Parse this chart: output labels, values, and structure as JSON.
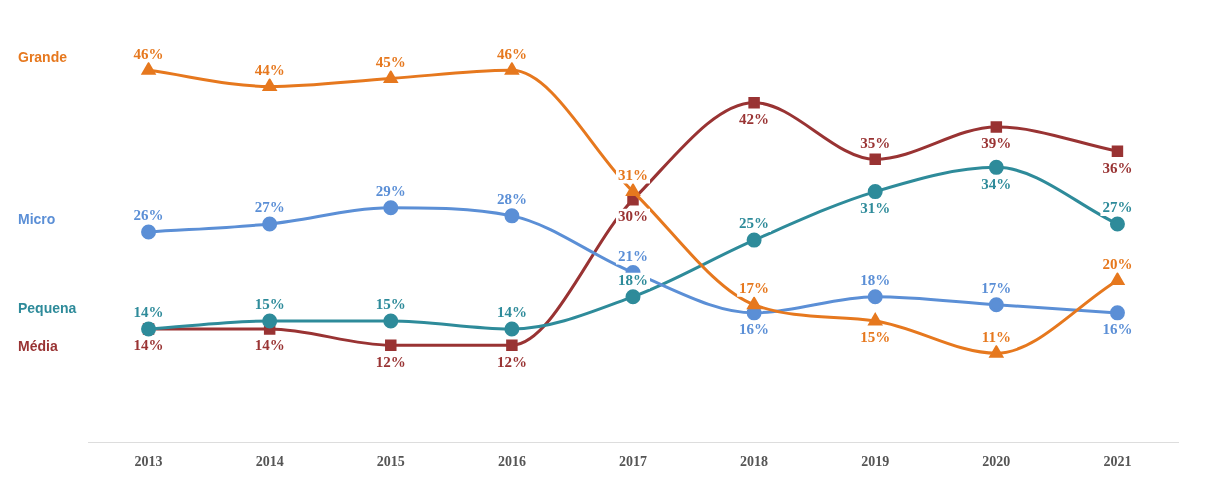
{
  "chart_data": {
    "type": "line",
    "categories": [
      "2013",
      "2014",
      "2015",
      "2016",
      "2017",
      "2018",
      "2019",
      "2020",
      "2021"
    ],
    "series": [
      {
        "name": "Grande",
        "color": "#e6781e",
        "marker": "triangle",
        "values": [
          46,
          44,
          45,
          46,
          31,
          17,
          15,
          11,
          20
        ],
        "value_labels": [
          "46%",
          "44%",
          "45%",
          "46%",
          "31%",
          "17%",
          "15%",
          "11%",
          "20%"
        ]
      },
      {
        "name": "Micro",
        "color": "#5b8fd6",
        "marker": "circle",
        "values": [
          26,
          27,
          29,
          28,
          21,
          16,
          18,
          17,
          16
        ],
        "value_labels": [
          "26%",
          "27%",
          "29%",
          "28%",
          "21%",
          "16%",
          "18%",
          "17%",
          "16%"
        ]
      },
      {
        "name": "Pequena",
        "color": "#2e8b9a",
        "marker": "circle",
        "values": [
          14,
          15,
          15,
          14,
          18,
          25,
          31,
          34,
          27
        ],
        "value_labels": [
          "14%",
          "15%",
          "15%",
          "14%",
          "18%",
          "25%",
          "31%",
          "34%",
          "27%"
        ]
      },
      {
        "name": "Média",
        "color": "#993333",
        "marker": "square",
        "values": [
          14,
          14,
          12,
          12,
          30,
          42,
          35,
          39,
          36
        ],
        "value_labels": [
          "14%",
          "14%",
          "12%",
          "12%",
          "30%",
          "42%",
          "35%",
          "39%",
          "36%"
        ]
      }
    ],
    "legend": false,
    "grid": false
  }
}
